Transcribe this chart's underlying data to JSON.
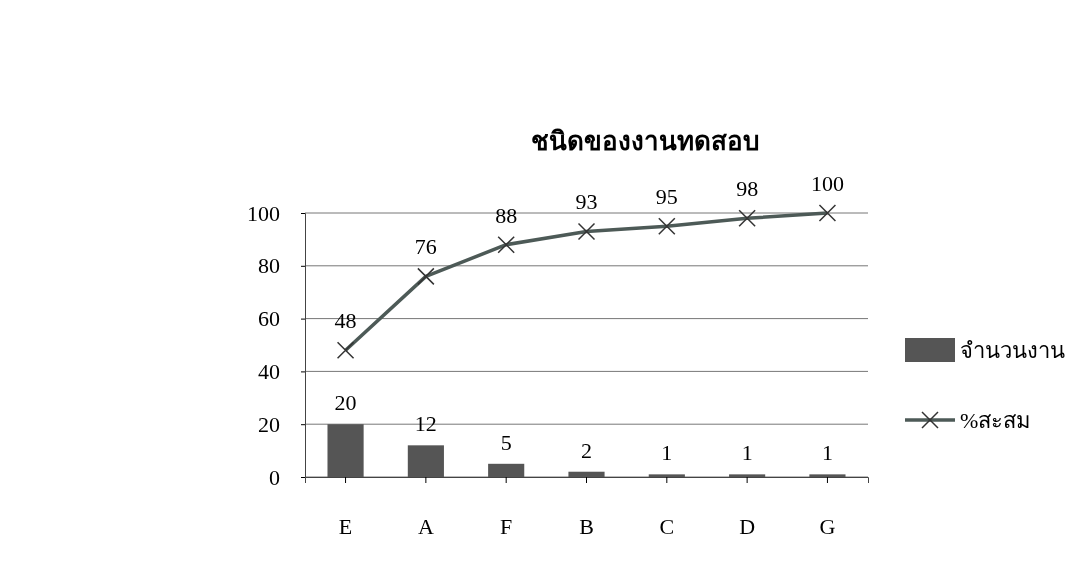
{
  "chart_data": {
    "type": "bar",
    "title": "ชนิดของงานทดสอบ",
    "categories": [
      "E",
      "A",
      "F",
      "B",
      "C",
      "D",
      "G"
    ],
    "series": [
      {
        "name": "จำนวนงาน",
        "color": "#555555",
        "values": [
          20,
          12,
          5,
          2,
          1,
          1,
          1
        ]
      },
      {
        "name": "%สะสม",
        "type": "line",
        "color": "#4d5a57",
        "marker": "cross",
        "values": [
          48,
          76,
          88,
          93,
          95,
          98,
          100
        ]
      }
    ],
    "ylim": [
      0,
      100
    ],
    "yticks": [
      0,
      20,
      40,
      60,
      80,
      100
    ],
    "grid": "y",
    "legend": "right",
    "data_labels": true
  }
}
